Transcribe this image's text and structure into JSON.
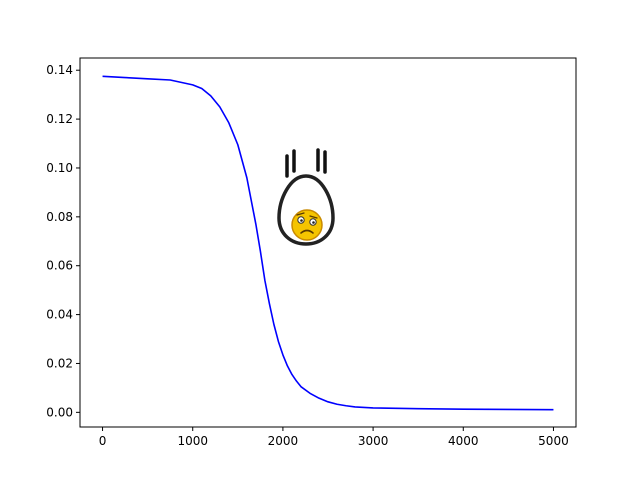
{
  "chart_data": {
    "type": "line",
    "title": "",
    "xlabel": "",
    "ylabel": "",
    "xlim": [
      -250,
      5250
    ],
    "ylim": [
      -0.006,
      0.145
    ],
    "x_ticks": [
      0,
      1000,
      2000,
      3000,
      4000,
      5000
    ],
    "x_tick_labels": [
      "0",
      "1000",
      "2000",
      "3000",
      "4000",
      "5000"
    ],
    "y_ticks": [
      0.0,
      0.02,
      0.04,
      0.06,
      0.08,
      0.1,
      0.12,
      0.14
    ],
    "y_tick_labels": [
      "0.00",
      "0.02",
      "0.04",
      "0.06",
      "0.08",
      "0.10",
      "0.12",
      "0.14"
    ],
    "grid": false,
    "series": [
      {
        "color": "#0000ff",
        "x": [
          0,
          250,
          500,
          750,
          1000,
          1100,
          1200,
          1300,
          1400,
          1500,
          1600,
          1700,
          1750,
          1800,
          1850,
          1900,
          1950,
          2000,
          2050,
          2100,
          2150,
          2200,
          2300,
          2400,
          2500,
          2600,
          2700,
          2800,
          3000,
          3500,
          4000,
          4500,
          5000
        ],
        "y": [
          0.1375,
          0.137,
          0.1365,
          0.136,
          0.134,
          0.1325,
          0.1295,
          0.125,
          0.1185,
          0.1095,
          0.096,
          0.077,
          0.066,
          0.054,
          0.0445,
          0.036,
          0.029,
          0.0235,
          0.019,
          0.0155,
          0.0128,
          0.0105,
          0.0078,
          0.0058,
          0.0043,
          0.0033,
          0.0027,
          0.0022,
          0.0018,
          0.0015,
          0.0013,
          0.0012,
          0.0011
        ]
      }
    ]
  },
  "decoration": {
    "icon": "scared-egg-sticker-icon",
    "face_color": "#f5c400",
    "outline_color": "#222222"
  }
}
